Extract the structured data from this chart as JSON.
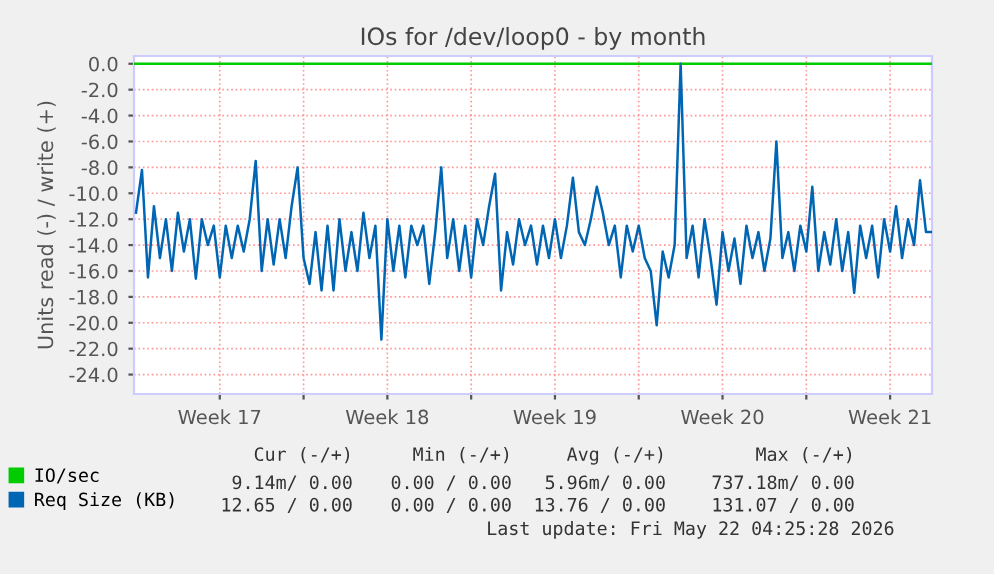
{
  "chart_data": {
    "type": "line",
    "title": "IOs for /dev/loop0 - by month",
    "ylabel": "Units read (-) / write (+)",
    "xlim": [
      "2026-04-19T22:00",
      "2026-05-23T06:00"
    ],
    "ylim": [
      -25.5,
      0.6
    ],
    "xticks": [
      {
        "value": "2026-04-23T12:00",
        "label": "Week 17"
      },
      {
        "value": "2026-04-27",
        "label": null
      },
      {
        "value": "2026-04-30T12:00",
        "label": "Week 18"
      },
      {
        "value": "2026-05-04",
        "label": null
      },
      {
        "value": "2026-05-07T12:00",
        "label": "Week 19"
      },
      {
        "value": "2026-05-11",
        "label": null
      },
      {
        "value": "2026-05-14T12:00",
        "label": "Week 20"
      },
      {
        "value": "2026-05-18",
        "label": null
      },
      {
        "value": "2026-05-21T12:00",
        "label": "Week 21"
      }
    ],
    "yticks": [
      {
        "value": 0,
        "label": "0.0"
      },
      {
        "value": -2,
        "label": "-2.0"
      },
      {
        "value": -4,
        "label": "-4.0"
      },
      {
        "value": -6,
        "label": "-6.0"
      },
      {
        "value": -8,
        "label": "-8.0"
      },
      {
        "value": -10,
        "label": "-10.0"
      },
      {
        "value": -12,
        "label": "-12.0"
      },
      {
        "value": -14,
        "label": "-14.0"
      },
      {
        "value": -16,
        "label": "-16.0"
      },
      {
        "value": -18,
        "label": "-18.0"
      },
      {
        "value": -20,
        "label": "-20.0"
      },
      {
        "value": -22,
        "label": "-22.0"
      },
      {
        "value": -24,
        "label": "-24.0"
      }
    ],
    "grid": true,
    "legend": "bottom left",
    "line_style": "solid",
    "marker": "none",
    "series": [
      {
        "name": "IO/sec",
        "color": "#00cc00",
        "x": [
          "2026-04-19T22:00",
          "2026-05-23T06:00"
        ],
        "values": [
          0,
          0
        ]
      },
      {
        "name": "Req Size (KB)",
        "color": "#0066b3",
        "x": [
          "2026-04-20T00:00",
          "2026-04-20T06:00",
          "2026-04-20T12:00",
          "2026-04-20T18:00",
          "2026-04-21T00:00",
          "2026-04-21T06:00",
          "2026-04-21T12:00",
          "2026-04-21T18:00",
          "2026-04-22T00:00",
          "2026-04-22T06:00",
          "2026-04-22T12:00",
          "2026-04-22T18:00",
          "2026-04-23T00:00",
          "2026-04-23T06:00",
          "2026-04-23T12:00",
          "2026-04-23T18:00",
          "2026-04-24T00:00",
          "2026-04-24T06:00",
          "2026-04-24T12:00",
          "2026-04-24T18:00",
          "2026-04-25T00:00",
          "2026-04-25T06:00",
          "2026-04-25T12:00",
          "2026-04-25T18:00",
          "2026-04-26T00:00",
          "2026-04-26T06:00",
          "2026-04-26T12:00",
          "2026-04-26T18:00",
          "2026-04-27T00:00",
          "2026-04-27T06:00",
          "2026-04-27T12:00",
          "2026-04-27T18:00",
          "2026-04-28T00:00",
          "2026-04-28T06:00",
          "2026-04-28T12:00",
          "2026-04-28T18:00",
          "2026-04-29T00:00",
          "2026-04-29T06:00",
          "2026-04-29T12:00",
          "2026-04-29T18:00",
          "2026-04-30T00:00",
          "2026-04-30T06:00",
          "2026-04-30T12:00",
          "2026-04-30T18:00",
          "2026-05-01T00:00",
          "2026-05-01T06:00",
          "2026-05-01T12:00",
          "2026-05-01T18:00",
          "2026-05-02T00:00",
          "2026-05-02T06:00",
          "2026-05-02T12:00",
          "2026-05-02T18:00",
          "2026-05-03T00:00",
          "2026-05-03T06:00",
          "2026-05-03T12:00",
          "2026-05-03T18:00",
          "2026-05-04T00:00",
          "2026-05-04T06:00",
          "2026-05-04T12:00",
          "2026-05-04T18:00",
          "2026-05-05T00:00",
          "2026-05-05T06:00",
          "2026-05-05T12:00",
          "2026-05-05T18:00",
          "2026-05-06T00:00",
          "2026-05-06T06:00",
          "2026-05-06T12:00",
          "2026-05-06T18:00",
          "2026-05-07T00:00",
          "2026-05-07T06:00",
          "2026-05-07T12:00",
          "2026-05-07T18:00",
          "2026-05-08T00:00",
          "2026-05-08T06:00",
          "2026-05-08T12:00",
          "2026-05-08T18:00",
          "2026-05-09T00:00",
          "2026-05-09T06:00",
          "2026-05-09T12:00",
          "2026-05-09T18:00",
          "2026-05-10T00:00",
          "2026-05-10T06:00",
          "2026-05-10T12:00",
          "2026-05-10T18:00",
          "2026-05-11T00:00",
          "2026-05-11T06:00",
          "2026-05-11T12:00",
          "2026-05-11T18:00",
          "2026-05-12T00:00",
          "2026-05-12T06:00",
          "2026-05-12T12:00",
          "2026-05-12T18:00",
          "2026-05-13T00:00",
          "2026-05-13T06:00",
          "2026-05-13T12:00",
          "2026-05-13T18:00",
          "2026-05-14T00:00",
          "2026-05-14T06:00",
          "2026-05-14T12:00",
          "2026-05-14T18:00",
          "2026-05-15T00:00",
          "2026-05-15T06:00",
          "2026-05-15T12:00",
          "2026-05-15T18:00",
          "2026-05-16T00:00",
          "2026-05-16T06:00",
          "2026-05-16T12:00",
          "2026-05-16T18:00",
          "2026-05-17T00:00",
          "2026-05-17T06:00",
          "2026-05-17T12:00",
          "2026-05-17T18:00",
          "2026-05-18T00:00",
          "2026-05-18T06:00",
          "2026-05-18T12:00",
          "2026-05-18T18:00",
          "2026-05-19T00:00",
          "2026-05-19T06:00",
          "2026-05-19T12:00",
          "2026-05-19T18:00",
          "2026-05-20T00:00",
          "2026-05-20T06:00",
          "2026-05-20T12:00",
          "2026-05-20T18:00",
          "2026-05-21T00:00",
          "2026-05-21T06:00",
          "2026-05-21T12:00",
          "2026-05-21T18:00",
          "2026-05-22T00:00",
          "2026-05-22T06:00",
          "2026-05-22T12:00",
          "2026-05-22T18:00",
          "2026-05-23T00:00",
          "2026-05-23T06:00"
        ],
        "values": [
          -11.5,
          -8.2,
          -16.5,
          -11,
          -15,
          -12,
          -16,
          -11.5,
          -14.5,
          -12,
          -16.6,
          -12,
          -14,
          -12.5,
          -16.5,
          -12.5,
          -15,
          -12.5,
          -14.5,
          -12,
          -7.5,
          -16,
          -12,
          -15.5,
          -12,
          -15,
          -11,
          -8,
          -15,
          -17,
          -13,
          -17.5,
          -12.5,
          -17.5,
          -12,
          -16,
          -13,
          -16,
          -11.5,
          -15,
          -12.5,
          -21.3,
          -12,
          -16,
          -12.5,
          -16.5,
          -12.5,
          -14,
          -12.5,
          -17,
          -13,
          -8,
          -15,
          -12,
          -16,
          -12.5,
          -16.5,
          -12,
          -14,
          -11,
          -8.5,
          -17.5,
          -13,
          -15.5,
          -12,
          -14,
          -12.5,
          -15.5,
          -12.5,
          -15,
          -12,
          -15,
          -12.5,
          -8.8,
          -13,
          -14,
          -12,
          -9.5,
          -11.5,
          -14,
          -12.5,
          -16.5,
          -12.5,
          -14.5,
          -12.5,
          -15,
          -16,
          -20.2,
          -14.5,
          -16.5,
          -14,
          0.0,
          -15,
          -12.5,
          -16.5,
          -12,
          -15,
          -18.6,
          -13,
          -16,
          -13.5,
          -17,
          -12.5,
          -15,
          -13,
          -16,
          -13.5,
          -6,
          -15,
          -13,
          -16,
          -12.5,
          -14.5,
          -9.5,
          -16,
          -13,
          -15.5,
          -12,
          -16,
          -13,
          -17.7,
          -12.5,
          -15,
          -12.5,
          -16.5,
          -12,
          -14.5,
          -11,
          -15,
          -12,
          -14,
          -9,
          -13,
          -13
        ]
      }
    ],
    "annotations": [
      "Cur (-/+)",
      "Min (-/+)",
      "Avg (-/+)",
      "Max (-/+)",
      "9.14m/ 0.00",
      "0.00 / 0.00",
      "5.96m/ 0.00",
      "737.18m/ 0.00",
      "12.65 / 0.00",
      "0.00 / 0.00",
      "13.76 / 0.00",
      "131.07 / 0.00",
      "Last update: Fri May 22 04:25:28 2026"
    ]
  }
}
